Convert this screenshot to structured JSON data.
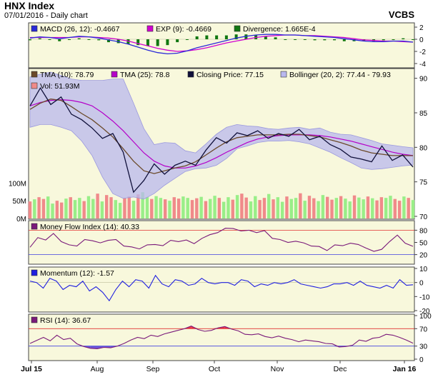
{
  "header": {
    "title": "HNX Index",
    "subtitle": "07/01/2016 - Daily chart",
    "brand": "VCBS"
  },
  "colors": {
    "background": "#f8f8dc",
    "bollinger_fill": "#b9b8ee",
    "bollinger_edge": "#9a98de",
    "price": "#10103a",
    "tma10": "#6b4a2a",
    "tma25": "#b400c8",
    "macd": "#2a2ad8",
    "exp": "#d000d0",
    "divergence": "#117711",
    "mfi": "#7a1a7a",
    "momentum": "#2020e0",
    "rsi": "#7a1a7a",
    "vol_up": "#99ee88",
    "vol_down": "#f08a8a",
    "threshold_high": "#e03030",
    "threshold_low": "#4040e0",
    "rsi_over_fill": "#ee3344",
    "rsi_under_fill": "#6f55d8"
  },
  "x_axis": {
    "labels": [
      "Jul 15",
      "Aug",
      "Sep",
      "Oct",
      "Nov",
      "Dec",
      "Jan 16"
    ]
  },
  "chart_data": [
    {
      "type": "line",
      "panel": "macd",
      "ylim": [
        -4,
        2
      ],
      "ticks": [
        "2",
        "0",
        "-2",
        "-4"
      ],
      "series": [
        {
          "name": "MACD (26, 12): -0.4667",
          "values": [
            0.2,
            0.4,
            0.3,
            0.1,
            0.3,
            0.5,
            0.4,
            0.2,
            -0.1,
            -0.4,
            -0.8,
            -1.3,
            -1.8,
            -2.2,
            -2.4,
            -2.3,
            -1.9,
            -1.4,
            -1.0,
            -0.6,
            -0.2,
            0.2,
            0.5,
            0.7,
            0.8,
            0.8,
            0.7,
            0.7,
            0.6,
            0.5,
            0.4,
            0.3,
            0.1,
            -0.1,
            -0.3,
            -0.4,
            -0.4,
            -0.3,
            -0.3,
            -0.47
          ]
        },
        {
          "name": "EXP (9): -0.4669",
          "values": [
            0.3,
            0.3,
            0.3,
            0.3,
            0.3,
            0.4,
            0.4,
            0.3,
            0.2,
            0.0,
            -0.3,
            -0.7,
            -1.1,
            -1.5,
            -1.8,
            -2.0,
            -1.9,
            -1.7,
            -1.4,
            -1.0,
            -0.6,
            -0.3,
            0.0,
            0.3,
            0.5,
            0.6,
            0.7,
            0.7,
            0.6,
            0.6,
            0.5,
            0.4,
            0.3,
            0.1,
            -0.1,
            -0.2,
            -0.3,
            -0.3,
            -0.4,
            -0.47
          ]
        },
        {
          "name": "Divergence: 1.665E-4",
          "values": [
            -0.1,
            0.1,
            0.0,
            -0.2,
            0.0,
            0.1,
            0.0,
            -0.1,
            -0.3,
            -0.4,
            -0.5,
            -0.6,
            -0.7,
            -0.7,
            -0.6,
            -0.3,
            0.0,
            0.3,
            0.4,
            0.4,
            0.4,
            0.5,
            0.5,
            0.4,
            0.3,
            0.2,
            0.0,
            0.0,
            0.0,
            -0.1,
            -0.1,
            -0.1,
            -0.2,
            -0.2,
            -0.2,
            -0.2,
            -0.1,
            0.0,
            0.1,
            0.0
          ]
        }
      ]
    },
    {
      "type": "line",
      "panel": "price",
      "ylim": [
        70,
        91
      ],
      "ticks": [
        "90",
        "85",
        "80",
        "75",
        "70"
      ],
      "vol_ticks": [
        "100M",
        "50M",
        "0M"
      ],
      "vol_max": 140,
      "series": [
        {
          "name": "TMA (10): 78.79",
          "values": [
            85.5,
            86.4,
            87.0,
            86.8,
            85.9,
            84.9,
            84.0,
            82.8,
            81.5,
            79.8,
            78.0,
            76.6,
            76.2,
            76.6,
            77.0,
            77.3,
            77.9,
            78.9,
            79.9,
            80.8,
            81.4,
            81.6,
            81.8,
            81.8,
            81.8,
            81.9,
            81.9,
            81.7,
            81.5,
            81.1,
            80.7,
            80.2,
            79.6,
            79.2,
            79.0,
            78.8,
            78.8,
            78.79
          ]
        },
        {
          "name": "TMA (25): 78.8",
          "values": [
            86.0,
            86.5,
            86.8,
            86.9,
            86.8,
            86.5,
            86.0,
            85.0,
            83.8,
            82.4,
            80.8,
            79.2,
            78.0,
            77.3,
            77.0,
            77.0,
            77.3,
            77.8,
            78.5,
            79.3,
            80.0,
            80.7,
            81.2,
            81.5,
            81.7,
            81.8,
            81.8,
            81.8,
            81.7,
            81.5,
            81.2,
            80.9,
            80.5,
            80.1,
            79.7,
            79.3,
            79.0,
            78.8
          ]
        },
        {
          "name": "Closing Price: 77.15",
          "values": [
            86.0,
            88.6,
            86.2,
            87.3,
            84.8,
            84.0,
            82.8,
            81.3,
            82.0,
            79.3,
            73.5,
            75.2,
            77.6,
            76.1,
            77.4,
            78.0,
            77.4,
            79.6,
            81.4,
            80.6,
            82.1,
            81.7,
            82.4,
            81.3,
            82.0,
            81.6,
            82.6,
            81.1,
            81.6,
            80.4,
            79.7,
            78.6,
            78.3,
            77.9,
            80.2,
            78.1,
            78.9,
            77.15
          ]
        },
        {
          "name": "Bollinger (20, 2): 77.44 - 79.93",
          "upper": [
            90.2,
            90.6,
            90.9,
            90.4,
            89.9,
            89.7,
            89.7,
            89.7,
            89.9,
            89.9,
            86.4,
            82.7,
            80.4,
            80.7,
            80.6,
            79.5,
            79.2,
            80.5,
            81.9,
            82.9,
            83.3,
            83.1,
            83.0,
            82.7,
            82.6,
            82.8,
            82.9,
            82.6,
            82.8,
            82.2,
            81.9,
            81.8,
            81.4,
            81.0,
            80.5,
            80.3,
            80.1,
            79.93
          ],
          "lower": [
            82.9,
            83.3,
            83.3,
            82.9,
            82.4,
            80.9,
            78.8,
            75.7,
            73.3,
            72.6,
            72.8,
            72.5,
            73.3,
            74.5,
            75.5,
            76.5,
            76.9,
            77.0,
            77.4,
            78.4,
            79.8,
            80.2,
            80.7,
            80.9,
            80.9,
            81.0,
            80.8,
            80.5,
            79.9,
            79.3,
            78.5,
            77.8,
            77.0,
            76.8,
            76.9,
            77.1,
            77.3,
            77.44
          ]
        },
        {
          "name": "Vol: 51.93M",
          "values": [
            48,
            54,
            60,
            55,
            62,
            42,
            50,
            45,
            56,
            60,
            52,
            58,
            49,
            63,
            55,
            70,
            48,
            66,
            60,
            52,
            44,
            58,
            62,
            50,
            68,
            74,
            60,
            55,
            63,
            58,
            54,
            50,
            60,
            56,
            62,
            58,
            52,
            57,
            61,
            49,
            55,
            64,
            58,
            47,
            60,
            53,
            66,
            70,
            59,
            48,
            63,
            52,
            58,
            69,
            54,
            60,
            47,
            62,
            55,
            58,
            71,
            50,
            64,
            57,
            49,
            66,
            61,
            53,
            58,
            63,
            56,
            48,
            65,
            59,
            54,
            62,
            57,
            51,
            60,
            58,
            64,
            55,
            50,
            62,
            58,
            52
          ]
        }
      ]
    },
    {
      "type": "line",
      "panel": "mfi",
      "ylim": [
        0,
        100
      ],
      "ticks": [
        "80",
        "50",
        "20"
      ],
      "series": [
        {
          "name": "Money Flow Index (14): 40.33",
          "values": [
            38,
            62,
            56,
            72,
            52,
            44,
            41,
            57,
            54,
            49,
            55,
            57,
            41,
            39,
            34,
            44,
            45,
            42,
            55,
            52,
            56,
            47,
            60,
            69,
            74,
            85,
            84,
            78,
            80,
            74,
            79,
            60,
            57,
            50,
            53,
            49,
            41,
            40,
            30,
            44,
            42,
            48,
            45,
            36,
            28,
            33,
            52,
            68,
            48,
            40.33
          ]
        }
      ]
    },
    {
      "type": "line",
      "panel": "momentum",
      "ylim": [
        -20,
        10
      ],
      "ticks": [
        "10",
        "0",
        "-10",
        "-20"
      ],
      "series": [
        {
          "name": "Momentum (12): -1.57",
          "values": [
            1,
            0,
            -4,
            3,
            1,
            -5,
            -2,
            -3,
            1,
            -6,
            -3,
            -7,
            -13,
            -5,
            1,
            -3,
            2,
            1,
            -4,
            5,
            -1,
            -3,
            2,
            1,
            -2,
            -1,
            3,
            0,
            -1,
            0,
            0,
            -2,
            2,
            1,
            -3,
            -1,
            -2,
            0,
            -1,
            0,
            2,
            -1,
            -2,
            -3,
            -4,
            -3,
            -1,
            -1,
            0,
            -2,
            1,
            -2,
            -3,
            -4,
            -2,
            -4,
            2,
            -2,
            -1.57
          ]
        }
      ]
    },
    {
      "type": "line",
      "panel": "rsi",
      "ylim": [
        0,
        100
      ],
      "ticks": [
        "100",
        "70",
        "30",
        "0"
      ],
      "series": [
        {
          "name": "RSI (14): 36.67",
          "values": [
            36,
            43,
            50,
            42,
            55,
            45,
            48,
            35,
            29,
            25,
            24,
            27,
            26,
            30,
            36,
            44,
            50,
            47,
            55,
            52,
            58,
            62,
            66,
            70,
            76,
            68,
            64,
            66,
            72,
            75,
            69,
            65,
            57,
            56,
            58,
            52,
            49,
            53,
            48,
            45,
            40,
            44,
            42,
            40,
            36,
            35,
            28,
            29,
            32,
            44,
            41,
            48,
            50,
            57,
            55,
            50,
            44,
            36.67
          ]
        }
      ]
    }
  ]
}
